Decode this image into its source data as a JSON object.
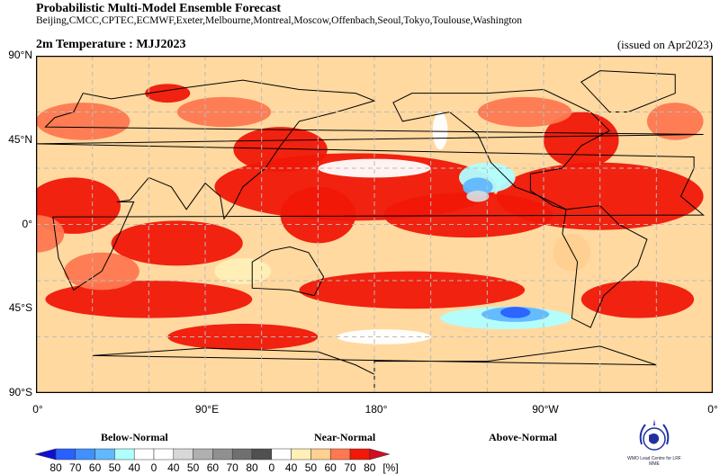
{
  "header": {
    "title": "Probabilistic Multi-Model Ensemble Forecast",
    "models": "Beijing,CMCC,CPTEC,ECMWF,Exeter,Melbourne,Montreal,Moscow,Offenbach,Seoul,Tokyo,Toulouse,Washington",
    "subtitle": "2m Temperature : MJJ2023",
    "issued": "(issued on Apr2023)"
  },
  "map": {
    "lat_labels": [
      "90°N",
      "45°N",
      "0°",
      "45°S",
      "90°S"
    ],
    "lon_labels": [
      "0°",
      "90°E",
      "180°",
      "90°W",
      "0°"
    ],
    "background_color": "#ffd9a0",
    "grid": "dashed"
  },
  "legend": {
    "categories": [
      "Below-Normal",
      "Near-Normal",
      "Above-Normal"
    ],
    "labels": [
      "80",
      "70",
      "60",
      "50",
      "40",
      "0",
      "40",
      "50",
      "60",
      "70",
      "80",
      "0",
      "40",
      "50",
      "60",
      "70",
      "80"
    ],
    "unit": "[%]",
    "colors": [
      "#2a60ff",
      "#4090ff",
      "#60b8ff",
      "#b0ffff",
      "#ffffff",
      "#ffffff",
      "#d8d8d8",
      "#b0b0b0",
      "#909090",
      "#707070",
      "#505050",
      "#ffffff",
      "#fff0b8",
      "#ffd090",
      "#ff7850",
      "#f01808"
    ],
    "arrow_low": "#1010d0",
    "arrow_high": "#d01020"
  },
  "logo": {
    "text": "WMO Lead Centre for LRF MME"
  }
}
